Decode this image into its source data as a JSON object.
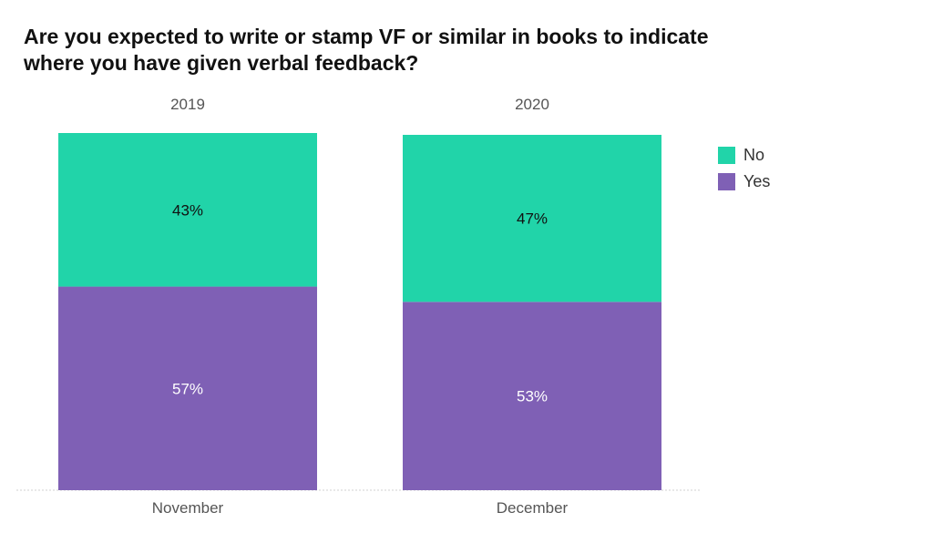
{
  "chart_data": {
    "type": "bar",
    "stacked": true,
    "percent": true,
    "title": "Are you expected to write or stamp VF or similar in books to indicate where you have given verbal feedback?",
    "categories": [
      "November",
      "December"
    ],
    "group_labels": [
      "2019",
      "2020"
    ],
    "series": [
      {
        "name": "Yes",
        "values": [
          57,
          53
        ],
        "labels": [
          "57%",
          "53%"
        ],
        "color": "#7f60b5",
        "label_color": "#ffffff"
      },
      {
        "name": "No",
        "values": [
          43,
          47
        ],
        "labels": [
          "43%",
          "47%"
        ],
        "color": "#21d4a9",
        "label_color": "#111111"
      }
    ],
    "ylim": [
      0,
      100
    ],
    "grid": false,
    "legend_position": "right",
    "legend_order": [
      "No",
      "Yes"
    ]
  }
}
